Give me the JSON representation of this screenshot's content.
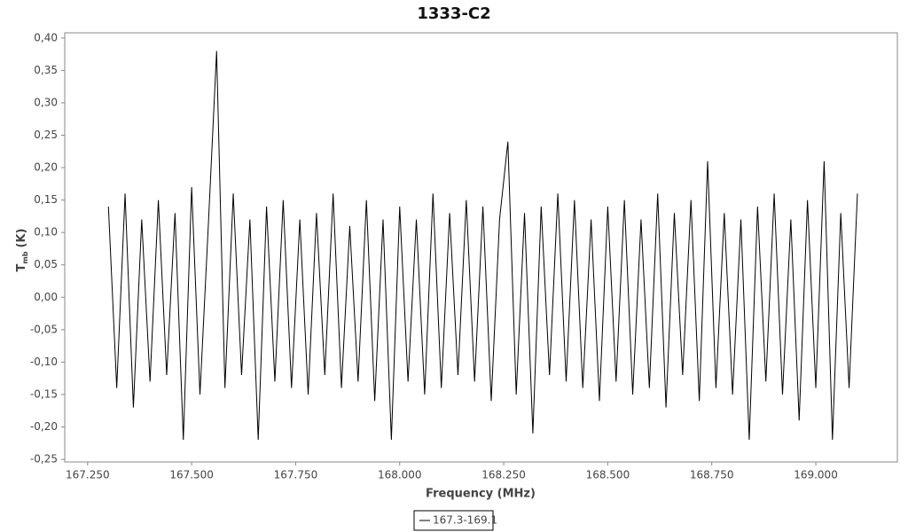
{
  "chart_data": {
    "type": "line",
    "title": "1333-C2",
    "x_label": "Frequency (MHz)",
    "y_label": {
      "main": "T",
      "sub": "mb",
      "unit": "(K)"
    },
    "x": [
      167.3,
      167.32,
      167.34,
      167.36,
      167.38,
      167.4,
      167.42,
      167.44,
      167.46,
      167.48,
      167.5,
      167.52,
      167.54,
      167.56,
      167.58,
      167.6,
      167.62,
      167.64,
      167.66,
      167.68,
      167.7,
      167.72,
      167.74,
      167.76,
      167.78,
      167.8,
      167.82,
      167.84,
      167.86,
      167.88,
      167.9,
      167.92,
      167.94,
      167.96,
      167.98,
      168.0,
      168.02,
      168.04,
      168.06,
      168.08,
      168.1,
      168.12,
      168.14,
      168.16,
      168.18,
      168.2,
      168.22,
      168.24,
      168.26,
      168.28,
      168.3,
      168.32,
      168.34,
      168.36,
      168.38,
      168.4,
      168.42,
      168.44,
      168.46,
      168.48,
      168.5,
      168.52,
      168.54,
      168.56,
      168.58,
      168.6,
      168.62,
      168.64,
      168.66,
      168.68,
      168.7,
      168.72,
      168.74,
      168.76,
      168.78,
      168.8,
      168.82,
      168.84,
      168.86,
      168.88,
      168.9,
      168.92,
      168.94,
      168.96,
      168.98,
      169.0,
      169.02,
      169.04,
      169.06,
      169.08,
      169.1
    ],
    "series": [
      {
        "name": "167.3-169.1",
        "color": "#000000",
        "values": [
          0.14,
          -0.14,
          0.16,
          -0.17,
          0.12,
          -0.13,
          0.15,
          -0.12,
          0.13,
          -0.22,
          0.17,
          -0.15,
          0.11,
          0.38,
          -0.14,
          0.16,
          -0.12,
          0.12,
          -0.22,
          0.14,
          -0.13,
          0.15,
          -0.14,
          0.12,
          -0.15,
          0.13,
          -0.12,
          0.16,
          -0.14,
          0.11,
          -0.13,
          0.15,
          -0.16,
          0.12,
          -0.22,
          0.14,
          -0.13,
          0.12,
          -0.15,
          0.16,
          -0.14,
          0.13,
          -0.12,
          0.15,
          -0.13,
          0.14,
          -0.16,
          0.12,
          0.24,
          -0.15,
          0.13,
          -0.21,
          0.14,
          -0.12,
          0.16,
          -0.13,
          0.15,
          -0.14,
          0.12,
          -0.16,
          0.14,
          -0.13,
          0.15,
          -0.15,
          0.12,
          -0.14,
          0.16,
          -0.17,
          0.13,
          -0.12,
          0.15,
          -0.16,
          0.21,
          -0.14,
          0.13,
          -0.15,
          0.12,
          -0.22,
          0.14,
          -0.13,
          0.16,
          -0.15,
          0.12,
          -0.19,
          0.15,
          -0.14,
          0.21,
          -0.22,
          0.13,
          -0.14,
          0.16
        ]
      }
    ],
    "xlim": [
      167.195,
      169.196
    ],
    "ylim": [
      -0.254,
      0.408
    ],
    "xticks": [
      {
        "value": 167.25,
        "label": "167.250"
      },
      {
        "value": 167.5,
        "label": "167.500"
      },
      {
        "value": 167.75,
        "label": "167.750"
      },
      {
        "value": 168.0,
        "label": "168.000"
      },
      {
        "value": 168.25,
        "label": "168.250"
      },
      {
        "value": 168.5,
        "label": "168.500"
      },
      {
        "value": 168.75,
        "label": "168.750"
      },
      {
        "value": 169.0,
        "label": "169.000"
      }
    ],
    "yticks": [
      {
        "value": -0.25,
        "label": "-0,25"
      },
      {
        "value": -0.2,
        "label": "-0,20"
      },
      {
        "value": -0.15,
        "label": "-0,15"
      },
      {
        "value": -0.1,
        "label": "-0,10"
      },
      {
        "value": -0.05,
        "label": "-0,05"
      },
      {
        "value": 0,
        "label": "0,00"
      },
      {
        "value": 0.05,
        "label": "0,05"
      },
      {
        "value": 0.1,
        "label": "0,10"
      },
      {
        "value": 0.15,
        "label": "0,15"
      },
      {
        "value": 0.2,
        "label": "0,20"
      },
      {
        "value": 0.25,
        "label": "0,25"
      },
      {
        "value": 0.3,
        "label": "0,30"
      },
      {
        "value": 0.35,
        "label": "0,35"
      },
      {
        "value": 0.4,
        "label": "0,40"
      }
    ],
    "grid": false,
    "legend": "bottom"
  }
}
